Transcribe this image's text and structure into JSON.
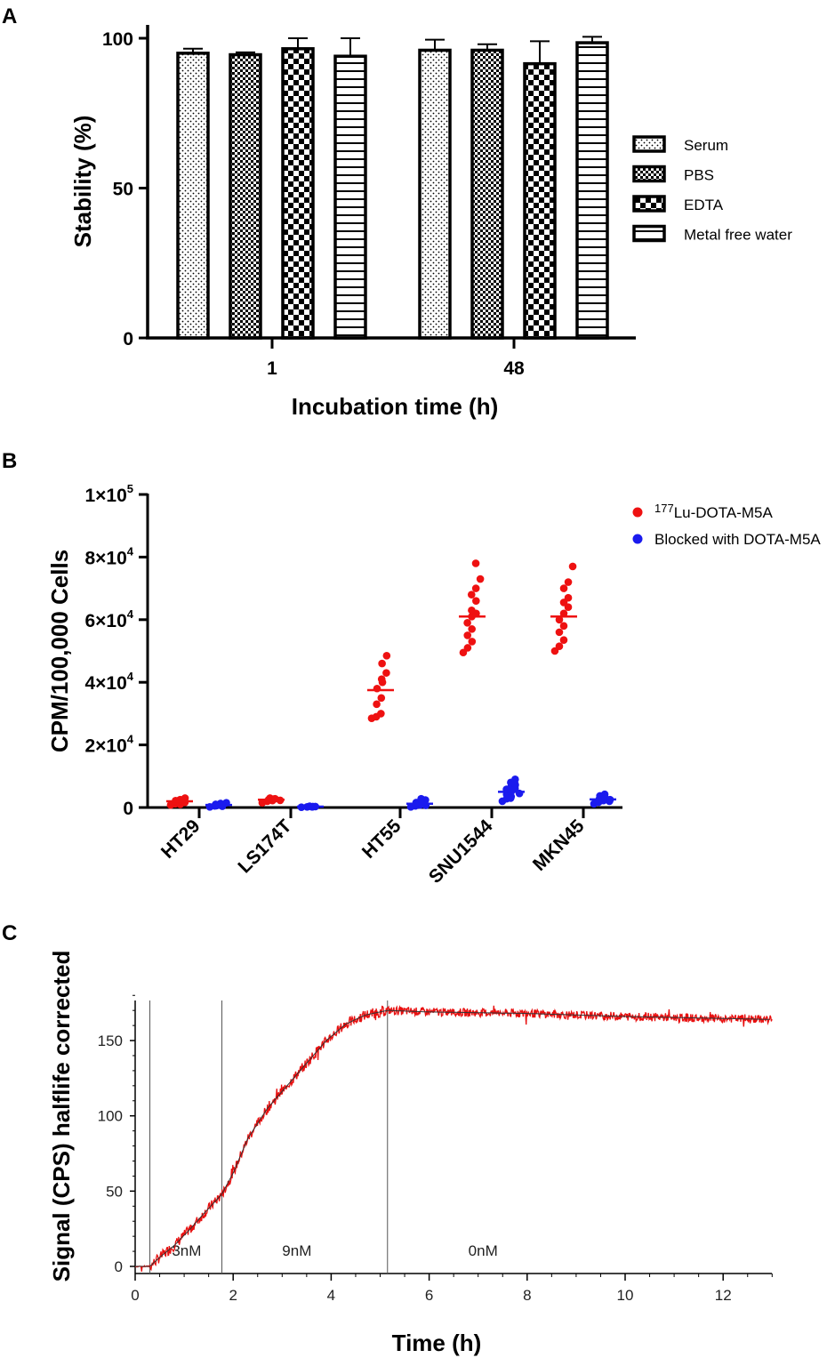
{
  "chart_data": [
    {
      "panel": "A",
      "type": "bar",
      "xlabel": "Incubation time (h)",
      "ylabel": "Stability (%)",
      "ylim": [
        0,
        100
      ],
      "yticks": [
        "0",
        "50",
        "100"
      ],
      "categories": [
        "1",
        "48"
      ],
      "legend_position": "right",
      "series": [
        {
          "name": "Serum",
          "pattern": "dots",
          "values": [
            95,
            96
          ],
          "errors": [
            1.5,
            3.5
          ]
        },
        {
          "name": "PBS",
          "pattern": "check",
          "values": [
            94.5,
            96
          ],
          "errors": [
            0.8,
            2
          ]
        },
        {
          "name": "EDTA",
          "pattern": "bigcheck",
          "values": [
            96.5,
            91.5
          ],
          "errors": [
            3.5,
            7.5
          ]
        },
        {
          "name": "Metal free water",
          "pattern": "hlines",
          "values": [
            94,
            98.5
          ],
          "errors": [
            6,
            2
          ]
        }
      ]
    },
    {
      "panel": "B",
      "type": "scatter",
      "xlabel": "",
      "ylabel": "CPM/100,000 Cells",
      "ylim": [
        0,
        100000
      ],
      "yticks": [
        {
          "value": 0,
          "mant": "0",
          "exp": ""
        },
        {
          "value": 20000,
          "mant": "2×10",
          "exp": "4"
        },
        {
          "value": 40000,
          "mant": "4×10",
          "exp": "4"
        },
        {
          "value": 60000,
          "mant": "6×10",
          "exp": "4"
        },
        {
          "value": 80000,
          "mant": "8×10",
          "exp": "4"
        },
        {
          "value": 100000,
          "mant": "1×10",
          "exp": "5"
        }
      ],
      "categories": [
        "HT29",
        "LS174T",
        "HT55",
        "SNU1544",
        "MKN45"
      ],
      "legend_position": "top-right",
      "series": [
        {
          "name": "Lu-DOTA-M5A",
          "name_sup": "177",
          "color": "#ee1111",
          "means": [
            2000,
            2500,
            37500,
            61000,
            61000
          ],
          "points": [
            [
              800,
              1200,
              1500,
              1800,
              2000,
              2200,
              2500,
              2800,
              1000,
              1600,
              2400,
              3000
            ],
            [
              1500,
              2000,
              2200,
              2500,
              2700,
              3000,
              2800,
              2300
            ],
            [
              28500,
              29000,
              30000,
              33000,
              35000,
              38000,
              41000,
              43000,
              46000,
              48500,
              40000
            ],
            [
              49500,
              51000,
              53000,
              55000,
              57000,
              59000,
              61000,
              62000,
              63000,
              66000,
              68000,
              70000,
              73000,
              78000
            ],
            [
              50000,
              51500,
              53500,
              56000,
              58000,
              60000,
              62000,
              64000,
              65500,
              67000,
              70000,
              72000,
              77000
            ]
          ]
        },
        {
          "name": "Blocked with DOTA-M5A",
          "name_sup": "",
          "color": "#1a1aee",
          "means": [
            800,
            300,
            1200,
            5000,
            2600
          ],
          "points": [
            [
              200,
              500,
              800,
              1000,
              1300,
              600,
              900,
              1500,
              400
            ],
            [
              100,
              200,
              300,
              400,
              300,
              200
            ],
            [
              200,
              500,
              800,
              1000,
              1300,
              1600,
              2000,
              2400,
              2800,
              700,
              1100
            ],
            [
              2000,
              2800,
              3500,
              4200,
              5000,
              5800,
              6500,
              7200,
              8000,
              9000,
              3000,
              6000,
              4500,
              7600
            ],
            [
              1200,
              1700,
              2200,
              2700,
              3200,
              3700,
              4200,
              2000,
              3000,
              2500
            ]
          ]
        }
      ]
    },
    {
      "panel": "C",
      "type": "line",
      "xlabel": "Time (h)",
      "ylabel": "Signal (CPS) halflife corrected",
      "xlim": [
        0,
        13
      ],
      "ylim": [
        -3,
        185
      ],
      "xticks": [
        0,
        2,
        4,
        6,
        8,
        10,
        12
      ],
      "yticks": [
        0,
        50,
        100,
        150
      ],
      "annotations": [
        {
          "x": 0.3,
          "label": "3nM",
          "label_x": 1.05
        },
        {
          "x": 1.77,
          "label": "9nM",
          "label_x": 3.3
        },
        {
          "x": 5.15,
          "label": "0nM",
          "label_x": 7.1
        }
      ],
      "fit_curve": [
        [
          0,
          0
        ],
        [
          0.3,
          0
        ],
        [
          0.5,
          6
        ],
        [
          0.8,
          14
        ],
        [
          1.1,
          24
        ],
        [
          1.4,
          35
        ],
        [
          1.77,
          48
        ],
        [
          2.0,
          62
        ],
        [
          2.3,
          85
        ],
        [
          2.7,
          105
        ],
        [
          3.1,
          120
        ],
        [
          3.5,
          135
        ],
        [
          3.9,
          150
        ],
        [
          4.3,
          161
        ],
        [
          4.7,
          167
        ],
        [
          5.15,
          170
        ],
        [
          6,
          169
        ],
        [
          8,
          168
        ],
        [
          10,
          166
        ],
        [
          13,
          164
        ]
      ],
      "signal_color": "#e81010"
    }
  ],
  "panels": {
    "a": "A",
    "b": "B",
    "c": "C"
  }
}
